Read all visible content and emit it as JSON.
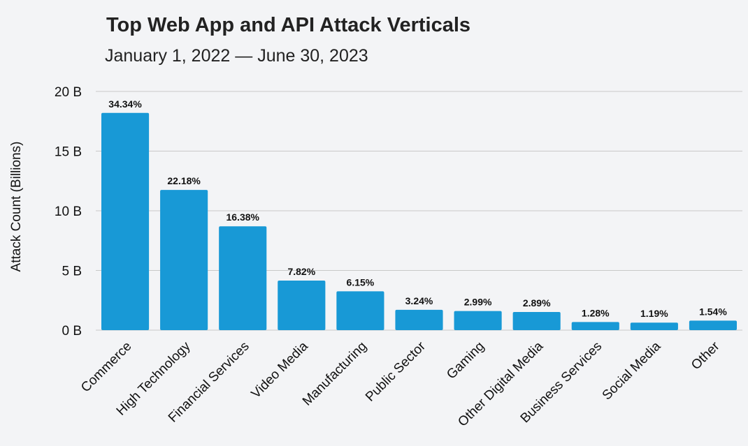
{
  "chart_data": {
    "type": "bar",
    "title": "Top Web App and API Attack Verticals",
    "subtitle": "January 1, 2022 — June 30, 2023",
    "ylabel": "Attack Count (Billions)",
    "xlabel": "",
    "ylim": [
      0,
      20
    ],
    "yticks": [
      {
        "value": 0,
        "label": "0 B"
      },
      {
        "value": 5,
        "label": "5 B"
      },
      {
        "value": 10,
        "label": "10 B"
      },
      {
        "value": 15,
        "label": "15 B"
      },
      {
        "value": 20,
        "label": "20 B"
      }
    ],
    "grid": true,
    "bar_color": "#1899d6",
    "categories": [
      "Commerce",
      "High Technology",
      "Financial Services",
      "Video Media",
      "Manufacturing",
      "Public Sector",
      "Gaming",
      "Other Digital Media",
      "Business Services",
      "Social Media",
      "Other"
    ],
    "values": [
      18.2,
      11.75,
      8.7,
      4.15,
      3.25,
      1.7,
      1.6,
      1.52,
      0.68,
      0.63,
      0.8
    ],
    "data_labels": [
      "34.34%",
      "22.18%",
      "16.38%",
      "7.82%",
      "6.15%",
      "3.24%",
      "2.99%",
      "2.89%",
      "1.28%",
      "1.19%",
      "1.54%"
    ]
  }
}
